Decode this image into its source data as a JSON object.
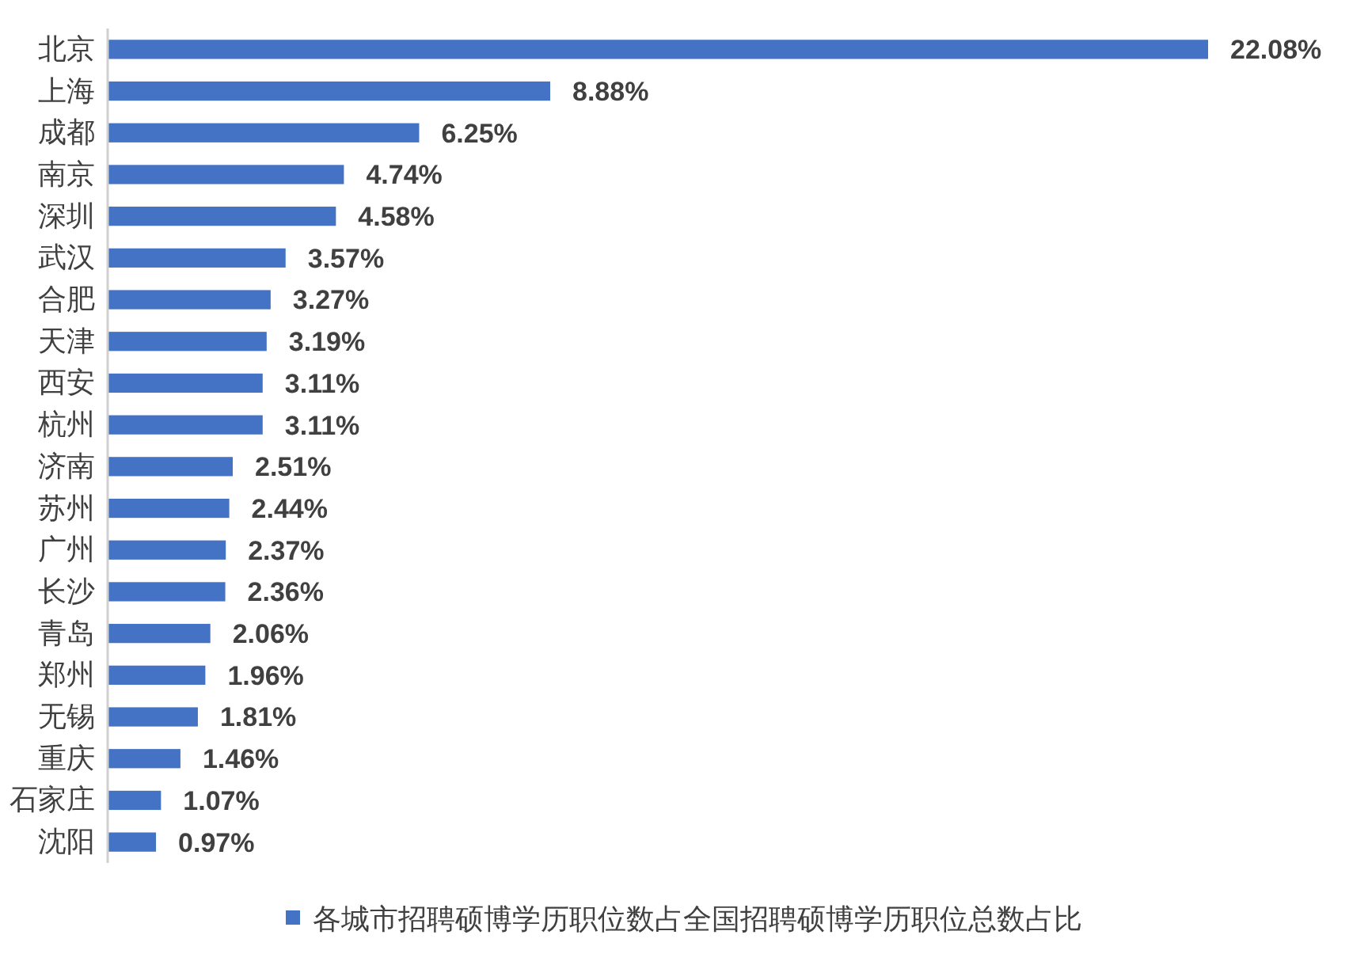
{
  "chart_data": {
    "type": "bar",
    "orientation": "horizontal",
    "categories": [
      "北京",
      "上海",
      "成都",
      "南京",
      "深圳",
      "武汉",
      "合肥",
      "天津",
      "西安",
      "杭州",
      "济南",
      "苏州",
      "广州",
      "长沙",
      "青岛",
      "郑州",
      "无锡",
      "重庆",
      "石家庄",
      "沈阳"
    ],
    "series": [
      {
        "name": "各城市招聘硕博学历职位数占全国招聘硕博学历职位总数占比",
        "color": "#4472c4",
        "values": [
          22.08,
          8.88,
          6.25,
          4.74,
          4.58,
          3.57,
          3.27,
          3.19,
          3.11,
          3.11,
          2.51,
          2.44,
          2.37,
          2.36,
          2.06,
          1.96,
          1.81,
          1.46,
          1.07,
          0.97
        ],
        "value_labels": [
          "22.08%",
          "8.88%",
          "6.25%",
          "4.74%",
          "4.58%",
          "3.57%",
          "3.27%",
          "3.19%",
          "3.11%",
          "3.11%",
          "2.51%",
          "2.44%",
          "2.37%",
          "2.36%",
          "2.06%",
          "1.96%",
          "1.81%",
          "1.46%",
          "1.07%",
          "0.97%"
        ]
      }
    ],
    "legend": "bottom"
  }
}
